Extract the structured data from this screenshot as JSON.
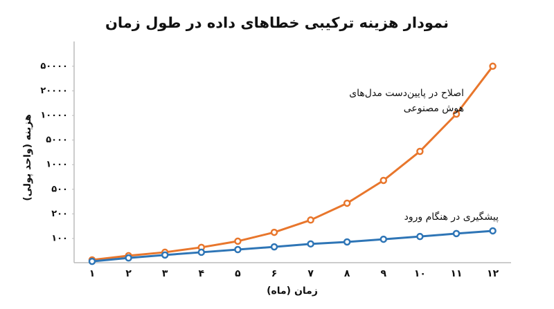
{
  "chart_data": {
    "type": "line",
    "title": "نمودار هزینه ترکیبی خطاهای داده در طول زمان",
    "x_label": "زمان (ماه)",
    "y_label": "هزینه (واحد پولی)",
    "categories": [
      "۱",
      "۲",
      "۳",
      "۴",
      "۵",
      "۶",
      "۷",
      "۸",
      "۹",
      "۱۰",
      "۱۱",
      "۱۲"
    ],
    "ylim": [
      0,
      50000
    ],
    "yticks": [
      {
        "value": 100,
        "label": "۱۰۰"
      },
      {
        "value": 200,
        "label": "۲۰۰"
      },
      {
        "value": 500,
        "label": "۵۰۰"
      },
      {
        "value": 1000,
        "label": "۱۰۰۰"
      },
      {
        "value": 5000,
        "label": "۵۰۰۰"
      },
      {
        "value": 10000,
        "label": "۱۰۰۰۰"
      },
      {
        "value": 20000,
        "label": "۲۰۰۰۰"
      },
      {
        "value": 50000,
        "label": "۵۰۰۰۰"
      }
    ],
    "series": [
      {
        "name": "اصلاح در پایین‌دست مدل‌های هوش مصنوعی",
        "color": "#e8762c",
        "values": [
          13,
          30,
          44,
          64,
          89,
          125,
          175,
          330,
          680,
          3160,
          10560,
          50000
        ]
      },
      {
        "name": "پیشگیری در هنگام ورود",
        "color": "#2e75b6",
        "values": [
          7,
          21,
          33,
          44,
          55,
          66,
          78,
          86,
          97,
          108,
          120,
          131
        ]
      }
    ]
  }
}
